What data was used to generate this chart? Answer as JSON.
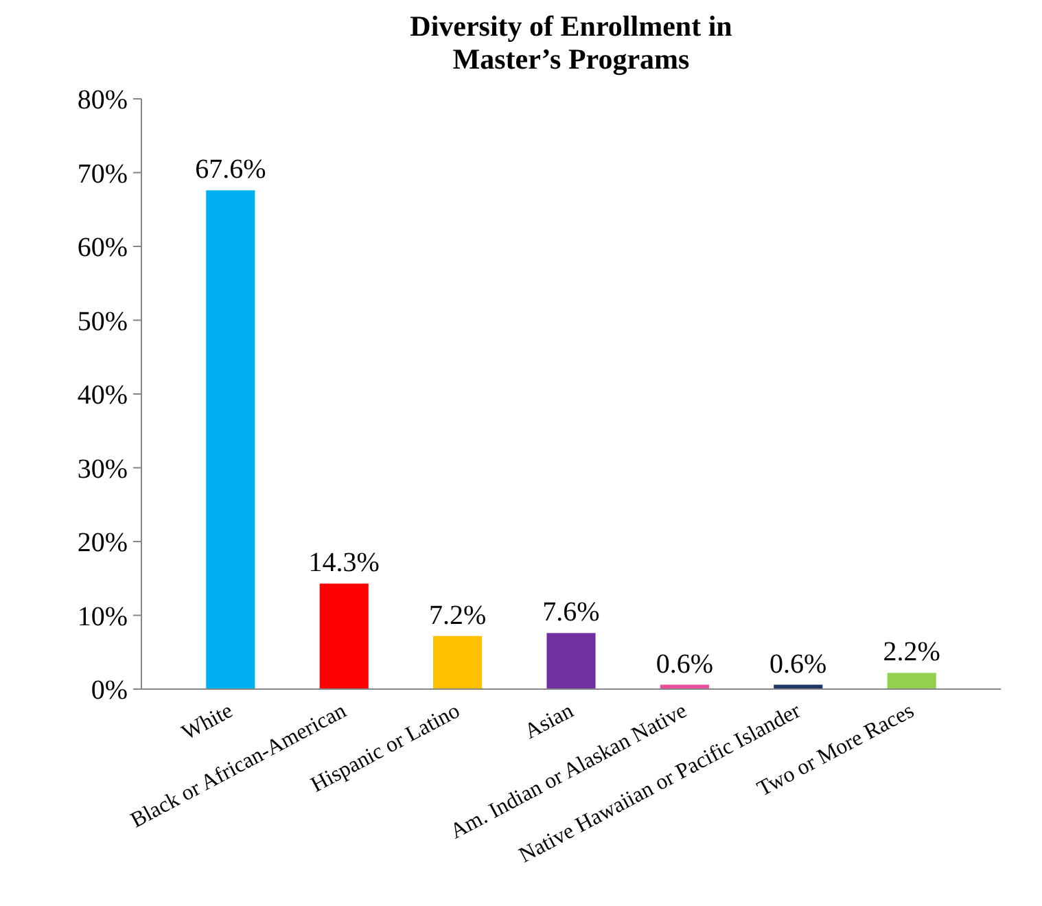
{
  "chart_data": {
    "type": "bar",
    "title": "Diversity of Enrollment in\nMaster’s Programs",
    "categories": [
      "White",
      "Black or African-American",
      "Hispanic or Latino",
      "Asian",
      "Am. Indian or Alaskan Native",
      "Native Hawaiian or Pacific Islander",
      "Two or More Races"
    ],
    "values": [
      67.6,
      14.3,
      7.2,
      7.6,
      0.6,
      0.6,
      2.2
    ],
    "colors": [
      "#00b0f0",
      "#ff0000",
      "#ffc000",
      "#7030a0",
      "#e8509c",
      "#1f3864",
      "#92d050"
    ],
    "value_labels": [
      "67.6%",
      "14.3%",
      "7.2%",
      "7.6%",
      "0.6%",
      "0.6%",
      "2.2%"
    ],
    "ylim": [
      0,
      80
    ],
    "yticks": [
      {
        "value": 0,
        "label": "0%"
      },
      {
        "value": 10,
        "label": "10%"
      },
      {
        "value": 20,
        "label": "20%"
      },
      {
        "value": 30,
        "label": "30%"
      },
      {
        "value": 40,
        "label": "40%"
      },
      {
        "value": 50,
        "label": "50%"
      },
      {
        "value": 60,
        "label": "60%"
      },
      {
        "value": 70,
        "label": "70%"
      },
      {
        "value": 80,
        "label": "80%"
      }
    ],
    "grid": false
  }
}
